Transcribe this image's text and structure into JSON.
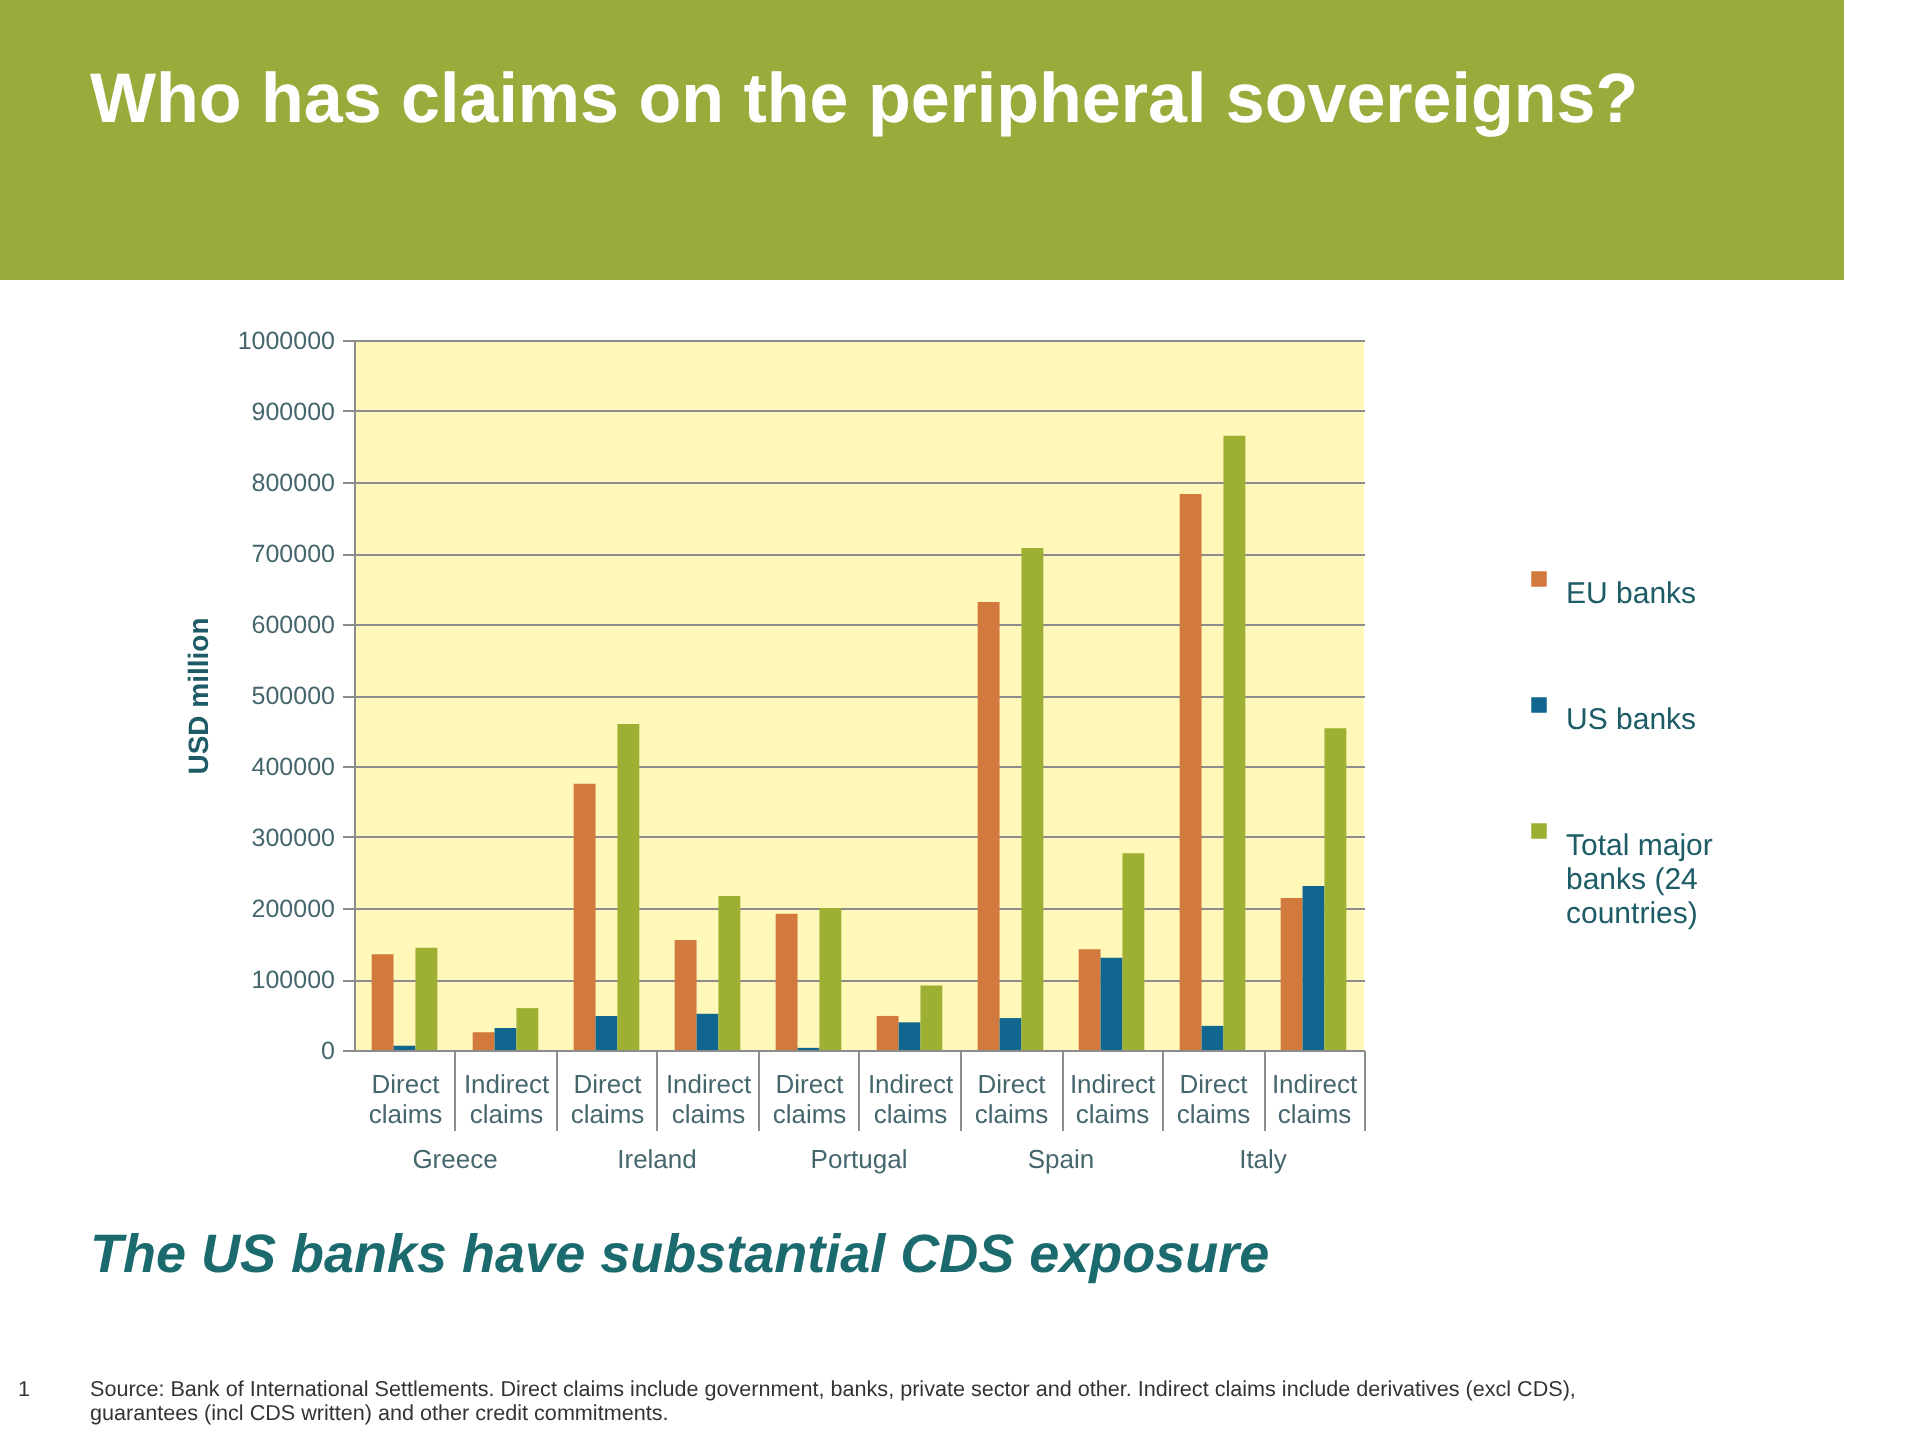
{
  "chart_data": {
    "type": "bar",
    "title": "Who has claims on the peripheral sovereigns?",
    "subtitle": "The US banks have substantial CDS exposure",
    "ylabel": "USD million",
    "categories": [
      "Direct claims",
      "Indirect claims",
      "Direct claims",
      "Indirect claims",
      "Direct claims",
      "Indirect claims",
      "Direct claims",
      "Indirect claims",
      "Direct claims",
      "Indirect claims"
    ],
    "series": [
      {
        "name": "EU banks",
        "color": "#d27a3e",
        "values": [
          135000,
          25000,
          375000,
          155000,
          192000,
          48000,
          631000,
          142000,
          783000,
          214000
        ]
      },
      {
        "name": "US banks",
        "color": "#10668f",
        "values": [
          6000,
          31000,
          48000,
          51000,
          3000,
          39000,
          45000,
          130000,
          34000,
          231000
        ]
      },
      {
        "name": "Total major banks (24 countries)",
        "color": "#9db033",
        "values": [
          144000,
          59000,
          459000,
          217000,
          200000,
          91000,
          707000,
          277000,
          865000,
          453000
        ]
      }
    ],
    "ylim": [
      0,
      1000000
    ],
    "yticks": [
      0,
      100000,
      200000,
      300000,
      400000,
      500000,
      600000,
      700000,
      800000,
      900000,
      1000000
    ],
    "grid": "y",
    "legend": "right",
    "annotations": [
      {
        "text": "Greece"
      },
      {
        "text": "Ireland"
      },
      {
        "text": "Portugal"
      },
      {
        "text": "Spain"
      },
      {
        "text": "Italy"
      },
      "1",
      "Source: Bank of International Settlements. Direct claims include government, banks, private sector and other. Indirect claims include derivatives (excl CDS), guarantees (incl CDS written) and other credit commitments."
    ]
  }
}
